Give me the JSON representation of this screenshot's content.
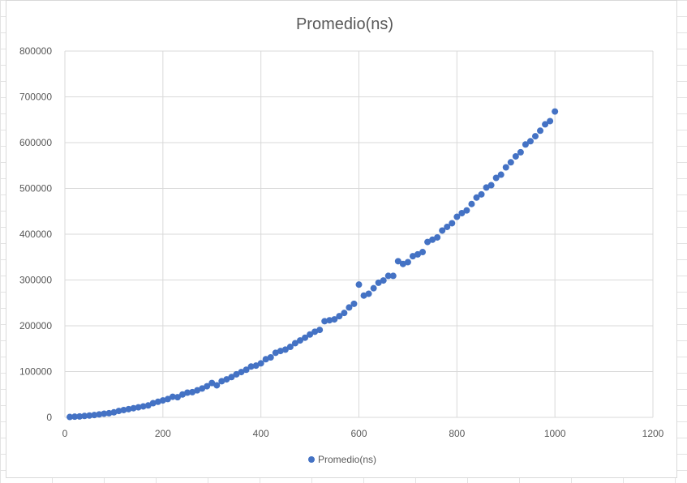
{
  "chart_data": {
    "type": "scatter",
    "title": "Promedio(ns)",
    "xlabel": "",
    "ylabel": "",
    "xlim": [
      0,
      1200
    ],
    "ylim": [
      0,
      800000
    ],
    "x_ticks": [
      0,
      200,
      400,
      600,
      800,
      1000,
      1200
    ],
    "y_ticks": [
      0,
      100000,
      200000,
      300000,
      400000,
      500000,
      600000,
      700000,
      800000
    ],
    "grid": true,
    "legend_position": "bottom",
    "series": [
      {
        "name": "Promedio(ns)",
        "color": "#4472c4",
        "x": [
          10,
          20,
          30,
          40,
          50,
          60,
          70,
          80,
          90,
          100,
          110,
          120,
          130,
          140,
          150,
          160,
          170,
          180,
          190,
          200,
          210,
          220,
          230,
          240,
          250,
          260,
          270,
          280,
          290,
          300,
          310,
          320,
          330,
          340,
          350,
          360,
          370,
          380,
          390,
          400,
          410,
          420,
          430,
          440,
          450,
          460,
          470,
          480,
          490,
          500,
          510,
          520,
          530,
          540,
          550,
          560,
          570,
          580,
          590,
          600,
          610,
          620,
          630,
          640,
          650,
          660,
          670,
          680,
          690,
          700,
          710,
          720,
          730,
          740,
          750,
          760,
          770,
          780,
          790,
          800,
          810,
          820,
          830,
          840,
          850,
          860,
          870,
          880,
          890,
          900,
          910,
          920,
          930,
          940,
          950,
          960,
          970,
          980,
          990,
          1000
        ],
        "y": [
          800,
          1500,
          2000,
          3000,
          4000,
          5000,
          6500,
          8000,
          9000,
          11000,
          14000,
          16000,
          18000,
          20000,
          22000,
          24000,
          26000,
          31000,
          34000,
          37000,
          40000,
          45000,
          44000,
          50000,
          54000,
          55000,
          59000,
          63000,
          68000,
          75000,
          70000,
          79000,
          83000,
          88000,
          94000,
          99000,
          104000,
          111000,
          113000,
          118000,
          127000,
          131000,
          141000,
          145000,
          148000,
          154000,
          162000,
          168000,
          174000,
          181000,
          187000,
          191000,
          210000,
          212000,
          214000,
          221000,
          228000,
          240000,
          248000,
          290000,
          266000,
          270000,
          282000,
          294000,
          299000,
          309000,
          309000,
          341000,
          335000,
          339000,
          352000,
          356000,
          361000,
          383000,
          388000,
          393000,
          408000,
          416000,
          424000,
          438000,
          446000,
          452000,
          466000,
          480000,
          487000,
          502000,
          507000,
          523000,
          530000,
          546000,
          557000,
          570000,
          579000,
          596000,
          603000,
          614000,
          626000,
          640000,
          647000,
          668000
        ]
      }
    ]
  }
}
